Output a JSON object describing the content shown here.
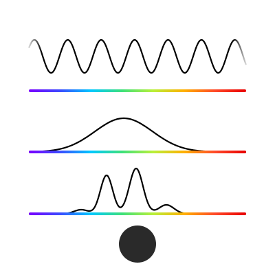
{
  "diagram": {
    "background": "#ffffff",
    "curve_color": "#000000",
    "dot_color": "#2a2a2a",
    "spectrum_colors": [
      "#7a00ff",
      "#3b4bff",
      "#00c8ff",
      "#3ee07a",
      "#b8f03a",
      "#ffb000",
      "#ff4a2a",
      "#e80000"
    ],
    "panels": [
      {
        "name": "periodic-wave",
        "kind": "sine",
        "cycles": 6.5
      },
      {
        "name": "single-peak",
        "kind": "gaussian",
        "peaks": 1
      },
      {
        "name": "multi-peak",
        "kind": "multi-gaussian",
        "peaks": 4
      }
    ],
    "marker": {
      "kind": "filled-circle",
      "icon": "black-dot-icon"
    }
  }
}
